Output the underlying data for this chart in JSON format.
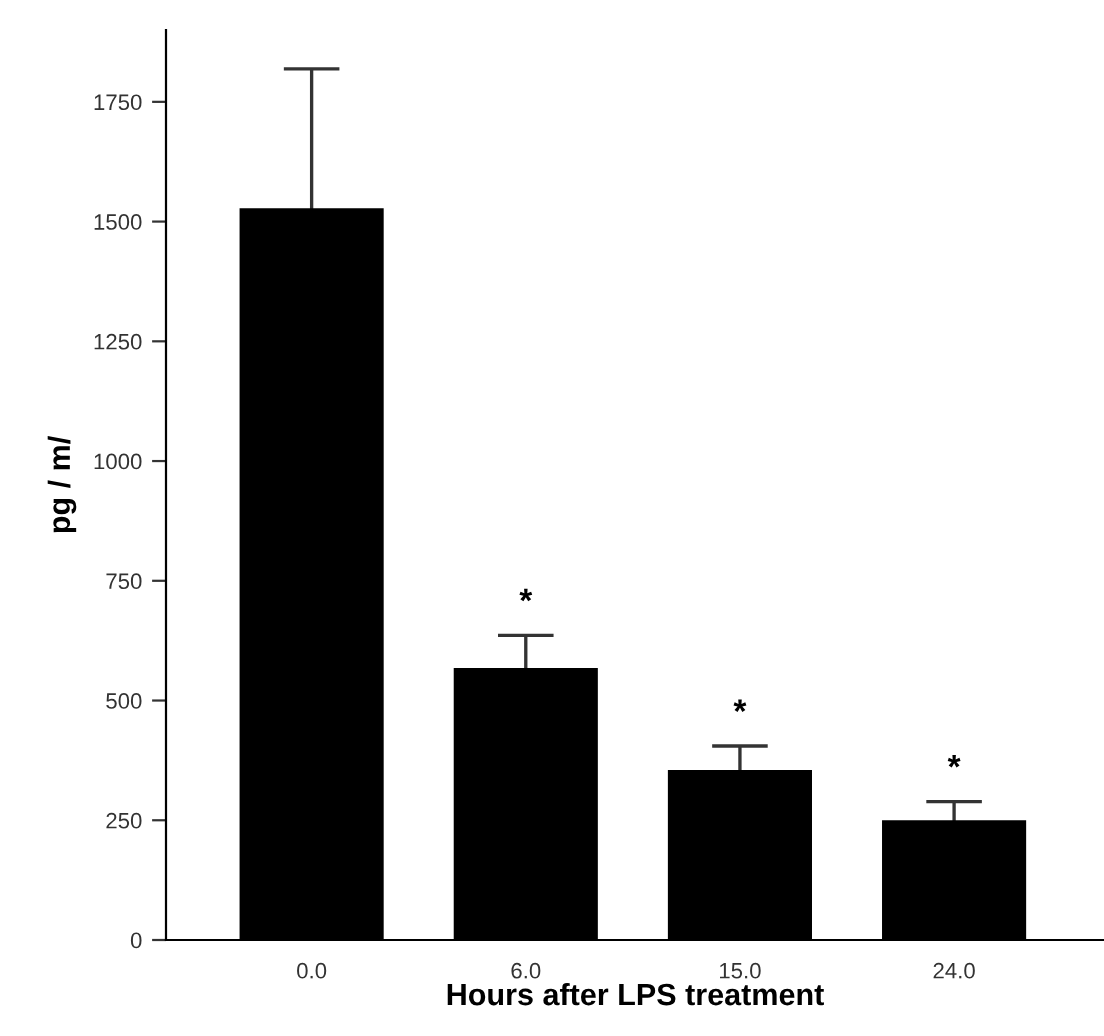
{
  "chart_data": {
    "type": "bar",
    "xlabel": "Hours after LPS treatment",
    "ylabel": "pg / m/",
    "categories": [
      "0.0",
      "6.0",
      "15.0",
      "24.0"
    ],
    "values": [
      1525,
      565,
      352,
      247
    ],
    "errors": [
      294,
      71,
      53,
      42
    ],
    "color": "#000000",
    "ylim": [
      0,
      1900
    ],
    "yticks": [
      0,
      250,
      500,
      750,
      1000,
      1250,
      1500,
      1750
    ],
    "annotations": [
      "*",
      "*",
      "*"
    ],
    "grid": false,
    "legend": false
  }
}
